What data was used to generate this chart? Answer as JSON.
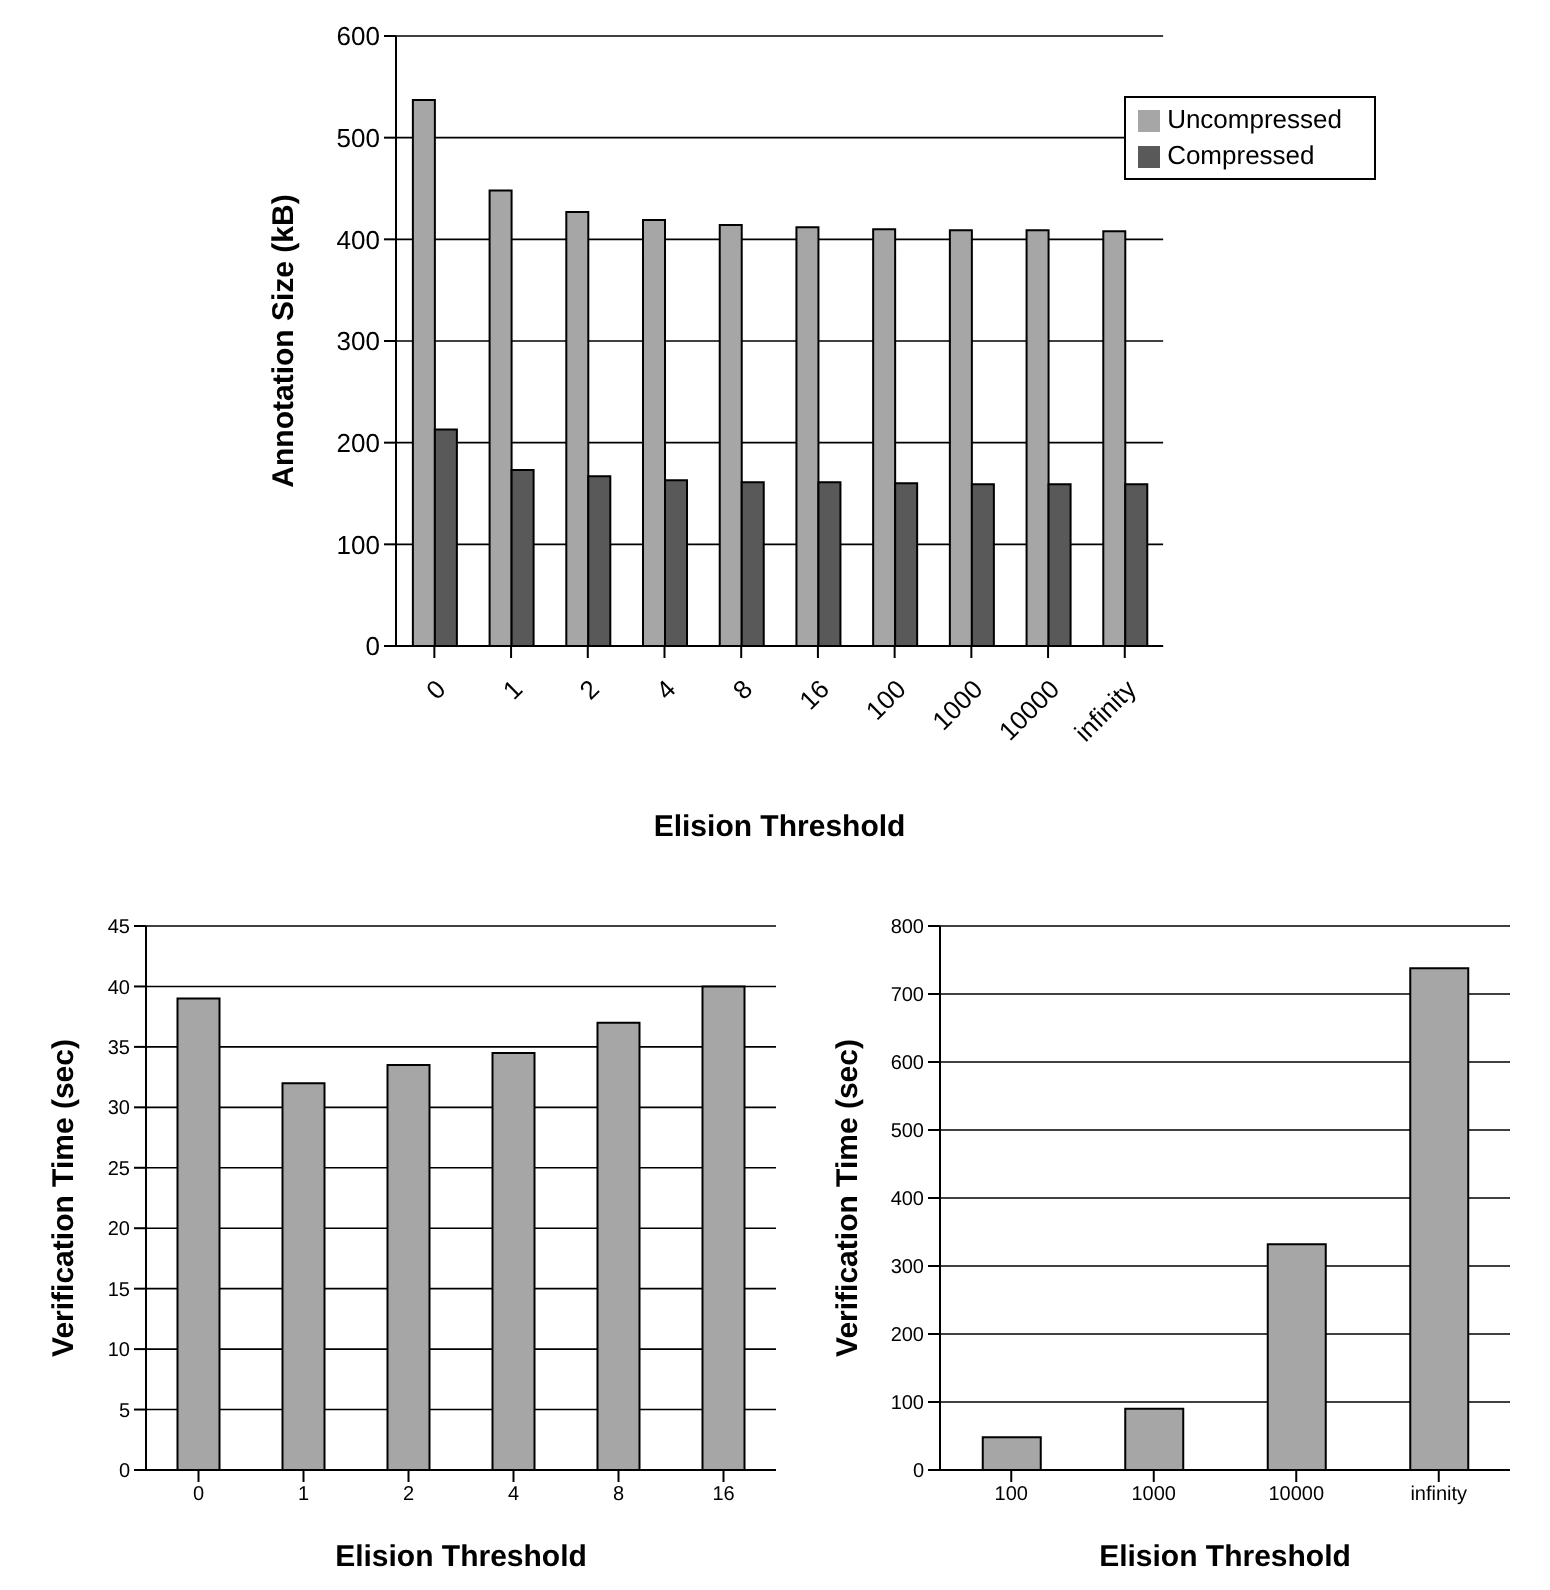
{
  "chart_data": [
    {
      "type": "bar",
      "xlabel": "Elision Threshold",
      "ylabel": "Annotation Size (kB)",
      "categories": [
        "0",
        "1",
        "2",
        "4",
        "8",
        "16",
        "100",
        "1000",
        "10000",
        "infinity"
      ],
      "series": [
        {
          "name": "Uncompressed",
          "color": "#a6a6a6",
          "values": [
            537,
            448,
            427,
            419,
            414,
            412,
            410,
            409,
            409,
            408
          ]
        },
        {
          "name": "Compressed",
          "color": "#595959",
          "values": [
            213,
            173,
            167,
            163,
            161,
            161,
            160,
            159,
            159,
            159
          ]
        }
      ],
      "ylim": [
        0,
        600
      ],
      "yticks": [
        0,
        100,
        200,
        300,
        400,
        500,
        600
      ],
      "grid": "y",
      "legend": "top right"
    },
    {
      "type": "bar",
      "xlabel": "Elision Threshold",
      "ylabel": "Verification Time (sec)",
      "categories": [
        "0",
        "1",
        "2",
        "4",
        "8",
        "16"
      ],
      "values": [
        39,
        32,
        33.5,
        34.5,
        37,
        40
      ],
      "color": "#a6a6a6",
      "ylim": [
        0,
        45
      ],
      "yticks": [
        0,
        5,
        10,
        15,
        20,
        25,
        30,
        35,
        40,
        45
      ],
      "grid": "y"
    },
    {
      "type": "bar",
      "xlabel": "Elision Threshold",
      "ylabel": "Verification Time (sec)",
      "categories": [
        "100",
        "1000",
        "10000",
        "infinity"
      ],
      "values": [
        48,
        90,
        332,
        738
      ],
      "color": "#a6a6a6",
      "ylim": [
        0,
        800
      ],
      "yticks": [
        0,
        100,
        200,
        300,
        400,
        500,
        600,
        700,
        800
      ],
      "grid": "y"
    }
  ]
}
